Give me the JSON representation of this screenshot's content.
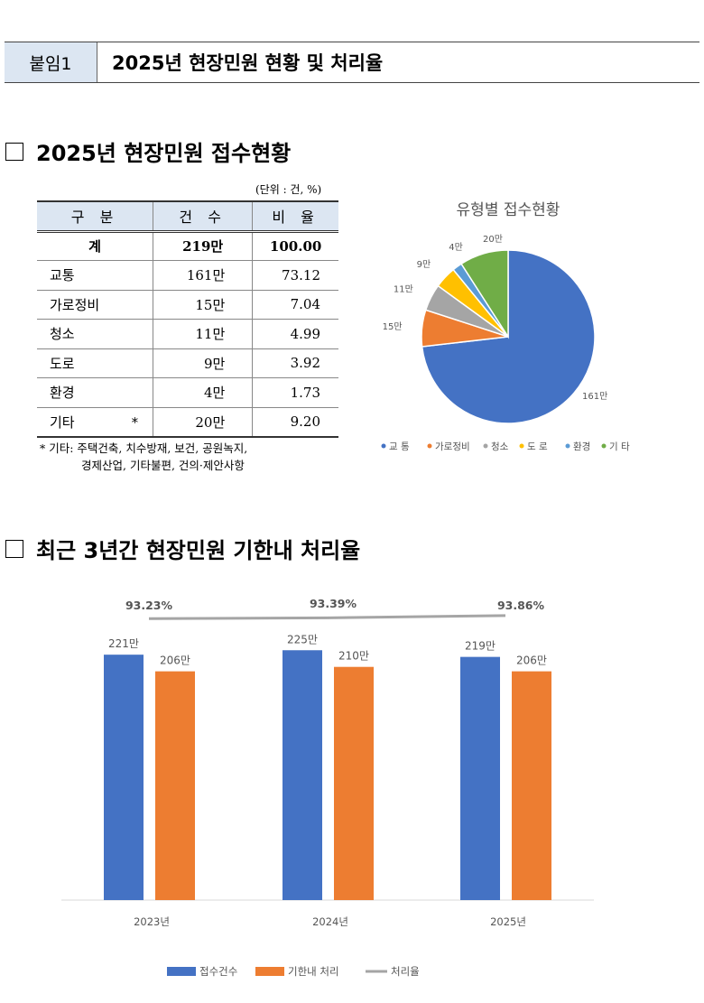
{
  "header": {
    "tag": "붙임1",
    "title": "2025년 현장민원 현황 및 처리율"
  },
  "section1": {
    "heading": "2025년 현장민원 접수현황",
    "unit": "(단위 : 건, %)"
  },
  "table": {
    "headers": [
      "구 분",
      "건  수",
      "비 율"
    ],
    "total": {
      "label": "계",
      "count": "219만",
      "ratio": "100.00"
    },
    "rows": [
      {
        "label": "교통",
        "count": "161만",
        "ratio": "73.12"
      },
      {
        "label": "가로정비",
        "count": "15만",
        "ratio": "7.04"
      },
      {
        "label": "청소",
        "count": "11만",
        "ratio": "4.99"
      },
      {
        "label": "도로",
        "count": "9만",
        "ratio": "3.92"
      },
      {
        "label": "환경",
        "count": "4만",
        "ratio": "1.73"
      },
      {
        "label": "기타 *",
        "count": "20만",
        "ratio": "9.20"
      }
    ],
    "note_line1": "* 기타: 주택건축, 치수방재, 보건, 공원녹지,",
    "note_line2": "경제산업, 기타불편, 건의·제안사항"
  },
  "section2": {
    "heading": "최근 3년간 현장민원 기한내 처리율"
  },
  "chart_data": [
    {
      "type": "pie",
      "title": "유형별 접수현황",
      "categories": [
        "교 통",
        "가로정비",
        "청소",
        "도 로",
        "환경",
        "기 타"
      ],
      "values": [
        161,
        15,
        11,
        9,
        4,
        20
      ],
      "labels": [
        "161만",
        "15만",
        "11만",
        "9만",
        "4만",
        "20만"
      ],
      "colors": [
        "#4472c4",
        "#ed7d31",
        "#a5a5a5",
        "#ffc000",
        "#5b9bd5",
        "#70ad47"
      ],
      "legend": "bottom"
    },
    {
      "type": "bar",
      "categories": [
        "2023년",
        "2024년",
        "2025년"
      ],
      "series": [
        {
          "name": "접수건수",
          "values": [
            221,
            225,
            219
          ],
          "labels": [
            "221만",
            "225만",
            "219만"
          ],
          "color": "#4472c4"
        },
        {
          "name": "기한내 처리",
          "values": [
            206,
            210,
            206
          ],
          "labels": [
            "206만",
            "210만",
            "206만"
          ],
          "color": "#ed7d31"
        },
        {
          "name": "처리율",
          "type": "line",
          "values": [
            93.23,
            93.39,
            93.86
          ],
          "labels": [
            "93.23%",
            "93.39%",
            "93.86%"
          ],
          "color": "#a5a5a5"
        }
      ],
      "legend": "bottom",
      "grid": false
    }
  ]
}
